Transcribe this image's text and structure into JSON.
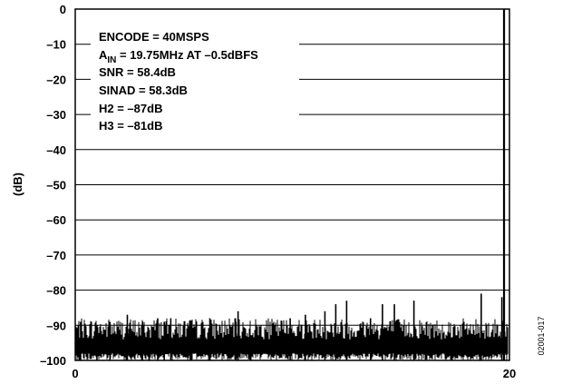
{
  "chart_data": {
    "type": "line",
    "title": "",
    "xlabel": "",
    "ylabel": "(dB)",
    "xlim": [
      0,
      20
    ],
    "ylim": [
      -100,
      0
    ],
    "x_ticks": [
      "0",
      "20"
    ],
    "y_ticks": [
      "0",
      "–10",
      "–20",
      "–30",
      "–40",
      "–50",
      "–60",
      "–70",
      "–80",
      "–90",
      "–100"
    ],
    "grid": "horizontal",
    "noise_floor_db": -95,
    "series": [
      {
        "x": [
          19.75,
          19.65,
          18.7,
          15.6,
          14.7,
          14.15,
          13.6,
          12.5,
          12.0,
          11.5,
          10.6,
          9.9,
          7.5,
          7.4,
          6.2,
          5.3,
          4.4,
          4.1,
          3.8,
          3.1,
          2.4,
          1.6,
          1.0,
          0.25
        ],
        "values": [
          0,
          -82,
          -81,
          -83,
          -84,
          -84,
          -88,
          -83,
          -84,
          -86,
          -87,
          -88,
          -86,
          -89,
          -88,
          -89,
          -88,
          -89,
          -88,
          -89,
          -87,
          -89,
          -90,
          -89
        ]
      }
    ],
    "annotations": {
      "encode": "ENCODE = 40MSPS",
      "ain_main": "A",
      "ain_sub": "IN",
      "ain_rest": " = 19.75MHz AT –0.5dBFS",
      "snr": "SNR = 58.4dB",
      "sinad": "SINAD = 58.3dB",
      "h2": "H2 = –87dB",
      "h3": "H3 = –81dB"
    },
    "figure_id": "02001-017"
  }
}
